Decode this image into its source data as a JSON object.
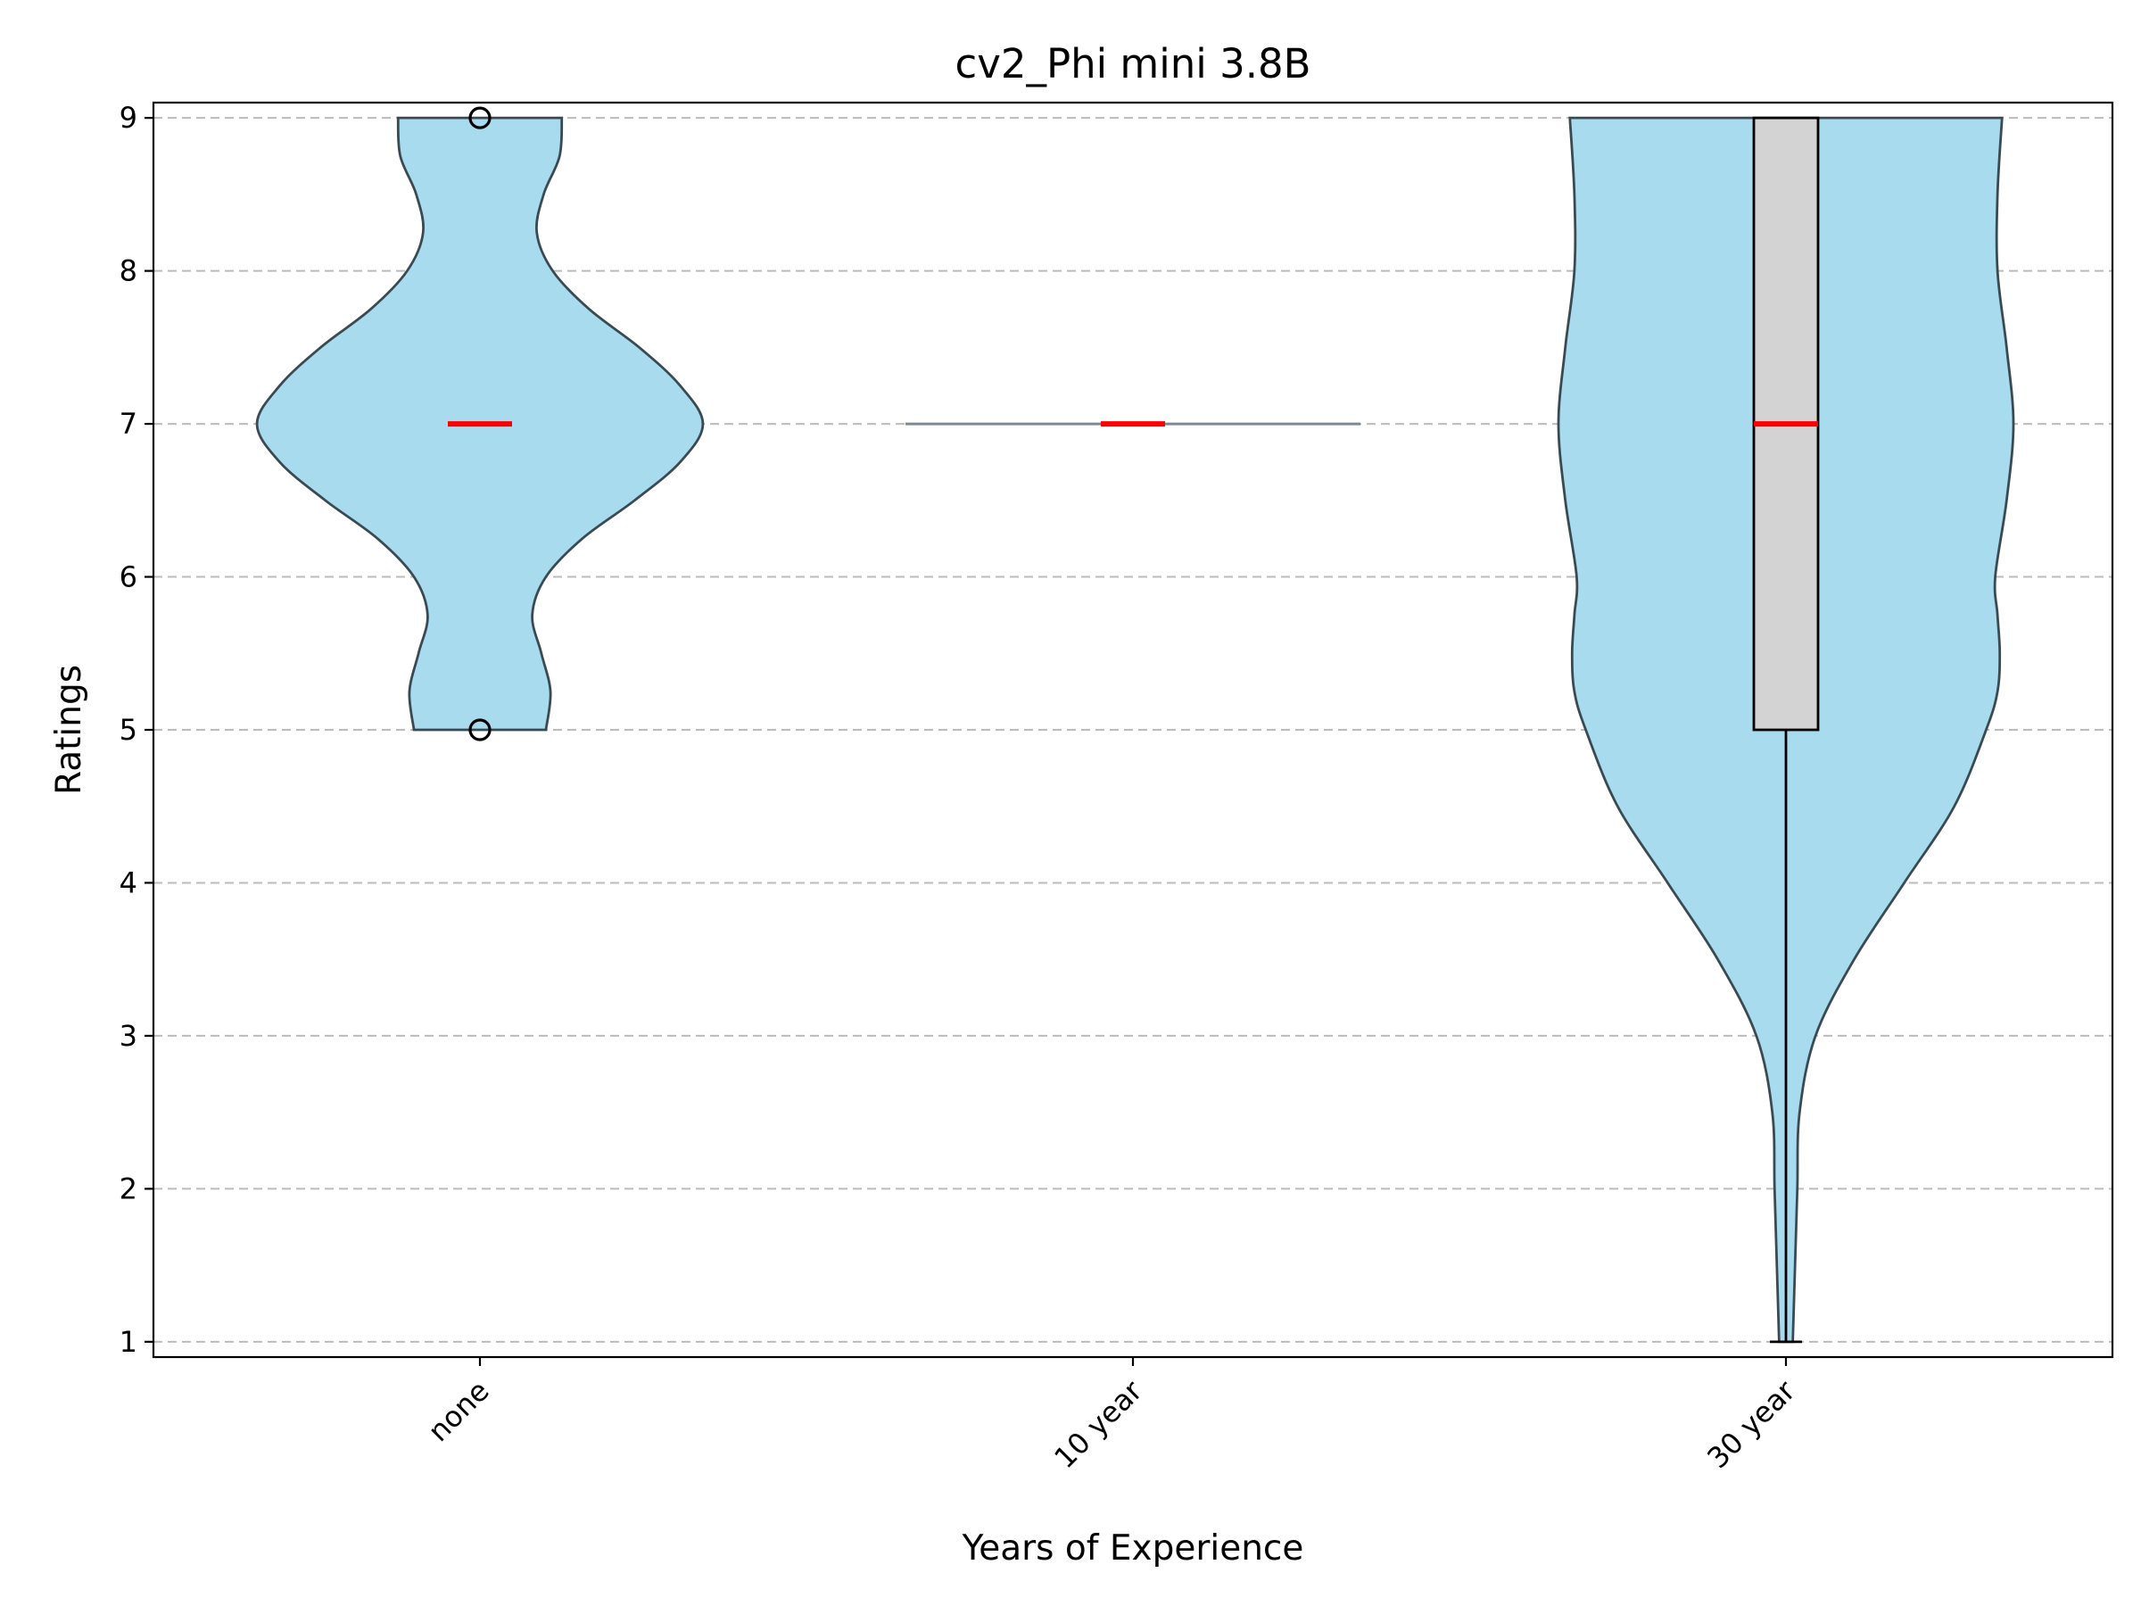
{
  "chart_data": {
    "type": "violin",
    "title": "cv2_Phi mini 3.8B",
    "xlabel": "Years of Experience",
    "ylabel": "Ratings",
    "categories": [
      "none",
      "10 year",
      "30 year"
    ],
    "ylim": [
      0.9,
      9.1
    ],
    "yticks": [
      1,
      2,
      3,
      4,
      5,
      6,
      7,
      8,
      9
    ],
    "grid": "y-dashed",
    "colors": {
      "violin_fill": "#a8dbee",
      "violin_edge": "#3a4a52",
      "box_fill": "#d3d3d3",
      "median": "#ff0000"
    },
    "series": [
      {
        "category": "none",
        "min": 5,
        "max": 9,
        "box": {
          "q1": 7,
          "median": 7,
          "q3": 7,
          "whisker_low": 7,
          "whisker_high": 7
        },
        "outliers": [
          5,
          9
        ],
        "density": [
          [
            5.0,
            0.29
          ],
          [
            5.25,
            0.31
          ],
          [
            5.5,
            0.27
          ],
          [
            5.75,
            0.23
          ],
          [
            6.0,
            0.29
          ],
          [
            6.25,
            0.45
          ],
          [
            6.5,
            0.68
          ],
          [
            6.75,
            0.88
          ],
          [
            7.0,
            0.98
          ],
          [
            7.25,
            0.88
          ],
          [
            7.5,
            0.7
          ],
          [
            7.75,
            0.48
          ],
          [
            8.0,
            0.32
          ],
          [
            8.25,
            0.25
          ],
          [
            8.5,
            0.28
          ],
          [
            8.75,
            0.35
          ],
          [
            9.0,
            0.36
          ]
        ]
      },
      {
        "category": "10 year",
        "min": 7,
        "max": 7,
        "box": {
          "q1": 7,
          "median": 7,
          "q3": 7,
          "whisker_low": 7,
          "whisker_high": 7
        },
        "outliers": [],
        "density": []
      },
      {
        "category": "30 year",
        "min": 1,
        "max": 9,
        "box": {
          "q1": 5,
          "median": 7,
          "q3": 9,
          "whisker_low": 1,
          "whisker_high": 9
        },
        "outliers": [],
        "density": [
          [
            1.0,
            0.03
          ],
          [
            1.5,
            0.04
          ],
          [
            2.0,
            0.05
          ],
          [
            2.5,
            0.06
          ],
          [
            3.0,
            0.13
          ],
          [
            3.5,
            0.3
          ],
          [
            4.0,
            0.52
          ],
          [
            4.5,
            0.74
          ],
          [
            5.0,
            0.88
          ],
          [
            5.25,
            0.93
          ],
          [
            5.5,
            0.94
          ],
          [
            5.75,
            0.93
          ],
          [
            6.0,
            0.92
          ],
          [
            6.5,
            0.97
          ],
          [
            7.0,
            1.0
          ],
          [
            7.5,
            0.97
          ],
          [
            8.0,
            0.93
          ],
          [
            8.5,
            0.93
          ],
          [
            9.0,
            0.95
          ]
        ]
      }
    ]
  }
}
